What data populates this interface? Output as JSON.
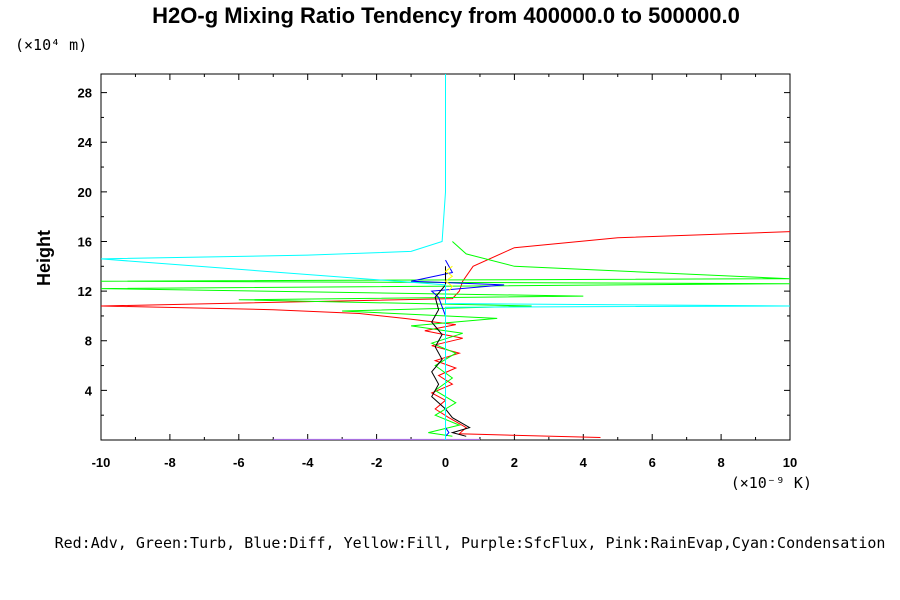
{
  "chart_data": {
    "type": "line",
    "title": "H2O-g Mixing Ratio Tendency from 400000.0 to 500000.0",
    "ylabel": "Height",
    "xunit": "(×10⁻⁹ K)",
    "yunit": "(×10⁴ m)",
    "xlim": [
      -10,
      10
    ],
    "ylim": [
      0,
      29.5
    ],
    "xticks": [
      "-10",
      "-8",
      "-6",
      "-4",
      "-2",
      "0",
      "2",
      "4",
      "6",
      "8",
      "10"
    ],
    "yticks": [
      "4",
      "8",
      "12",
      "16",
      "20",
      "24",
      "28"
    ],
    "legend_text": "Red:Adv, Green:Turb, Blue:Diff, Yellow:Fill, Purple:SfcFlux, Pink:RainEvap,Cyan:Condensation",
    "series": [
      {
        "color": "#ff0000",
        "points": [
          [
            4.5,
            0.2
          ],
          [
            0.4,
            0.5
          ],
          [
            0.6,
            1.0
          ],
          [
            0.1,
            1.8
          ],
          [
            -0.3,
            2.5
          ],
          [
            0.0,
            3.2
          ],
          [
            -0.4,
            3.8
          ],
          [
            0.2,
            4.5
          ],
          [
            -0.2,
            5.2
          ],
          [
            0.3,
            5.8
          ],
          [
            -0.3,
            6.4
          ],
          [
            0.4,
            7.0
          ],
          [
            -0.4,
            7.6
          ],
          [
            0.5,
            8.2
          ],
          [
            -0.6,
            8.8
          ],
          [
            0.3,
            9.3
          ],
          [
            -1.2,
            9.8
          ],
          [
            -2.5,
            10.2
          ],
          [
            -5.0,
            10.5
          ],
          [
            -10,
            10.8
          ],
          [
            0.2,
            11.4
          ],
          [
            0.4,
            12.0
          ],
          [
            0.5,
            12.8
          ],
          [
            0.8,
            14.0
          ],
          [
            2.0,
            15.5
          ],
          [
            5.0,
            16.3
          ],
          [
            10,
            16.8
          ]
        ]
      },
      {
        "color": "#00ff00",
        "points": [
          [
            0.2,
            0.3
          ],
          [
            -0.5,
            0.6
          ],
          [
            0.4,
            1.2
          ],
          [
            -0.3,
            2.0
          ],
          [
            0.3,
            3.0
          ],
          [
            -0.3,
            4.0
          ],
          [
            0.2,
            5.0
          ],
          [
            -0.3,
            6.0
          ],
          [
            0.3,
            7.0
          ],
          [
            -0.4,
            7.8
          ],
          [
            0.5,
            8.6
          ],
          [
            -1.0,
            9.2
          ],
          [
            1.5,
            9.8
          ],
          [
            -3.0,
            10.4
          ],
          [
            2.5,
            10.8
          ],
          [
            -6.0,
            11.3
          ],
          [
            4.0,
            11.6
          ],
          [
            -10,
            12.2
          ],
          [
            10,
            12.6
          ],
          [
            -10,
            12.8
          ],
          [
            10,
            13.0
          ],
          [
            2.0,
            14.0
          ],
          [
            0.6,
            15.0
          ],
          [
            0.2,
            16.0
          ]
        ]
      },
      {
        "color": "#0000ff",
        "points": [
          [
            0.0,
            0.3
          ],
          [
            0.1,
            0.6
          ],
          [
            0.0,
            1.0
          ],
          [
            0.0,
            6.0
          ],
          [
            0.0,
            10.0
          ],
          [
            -0.2,
            11.5
          ],
          [
            -0.4,
            12.0
          ],
          [
            1.7,
            12.5
          ],
          [
            -1.0,
            12.8
          ],
          [
            0.2,
            13.5
          ],
          [
            0.0,
            14.5
          ]
        ]
      },
      {
        "color": "#000000",
        "points": [
          [
            0.6,
            0.3
          ],
          [
            0.2,
            0.6
          ],
          [
            0.7,
            1.0
          ],
          [
            0.2,
            1.8
          ],
          [
            0.0,
            2.5
          ],
          [
            -0.4,
            3.5
          ],
          [
            -0.2,
            4.5
          ],
          [
            -0.4,
            5.5
          ],
          [
            -0.1,
            6.5
          ],
          [
            -0.3,
            7.5
          ],
          [
            -0.1,
            8.5
          ],
          [
            -0.4,
            9.5
          ],
          [
            -0.2,
            10.5
          ],
          [
            -0.3,
            11.5
          ],
          [
            0.0,
            12.5
          ],
          [
            0.0,
            14.0
          ]
        ]
      },
      {
        "color": "#ffff00",
        "points": [
          [
            0.1,
            12.0
          ],
          [
            0.2,
            12.4
          ],
          [
            0.0,
            12.8
          ],
          [
            0.2,
            13.2
          ],
          [
            0.0,
            13.6
          ],
          [
            0.2,
            14.0
          ]
        ]
      },
      {
        "color": "#c080ff",
        "points": [
          [
            -5.0,
            0.05
          ],
          [
            1.0,
            0.05
          ]
        ]
      },
      {
        "color": "#00ffff",
        "points": [
          [
            0.0,
            29.5
          ],
          [
            0.0,
            20.0
          ],
          [
            -0.1,
            16.0
          ],
          [
            -1.0,
            15.2
          ],
          [
            -4.0,
            14.9
          ],
          [
            -10,
            14.6
          ],
          [
            0.0,
            12.5
          ],
          [
            0.0,
            11.0
          ],
          [
            10,
            10.8
          ],
          [
            0.0,
            10.7
          ],
          [
            0.0,
            0.0
          ]
        ]
      }
    ]
  }
}
